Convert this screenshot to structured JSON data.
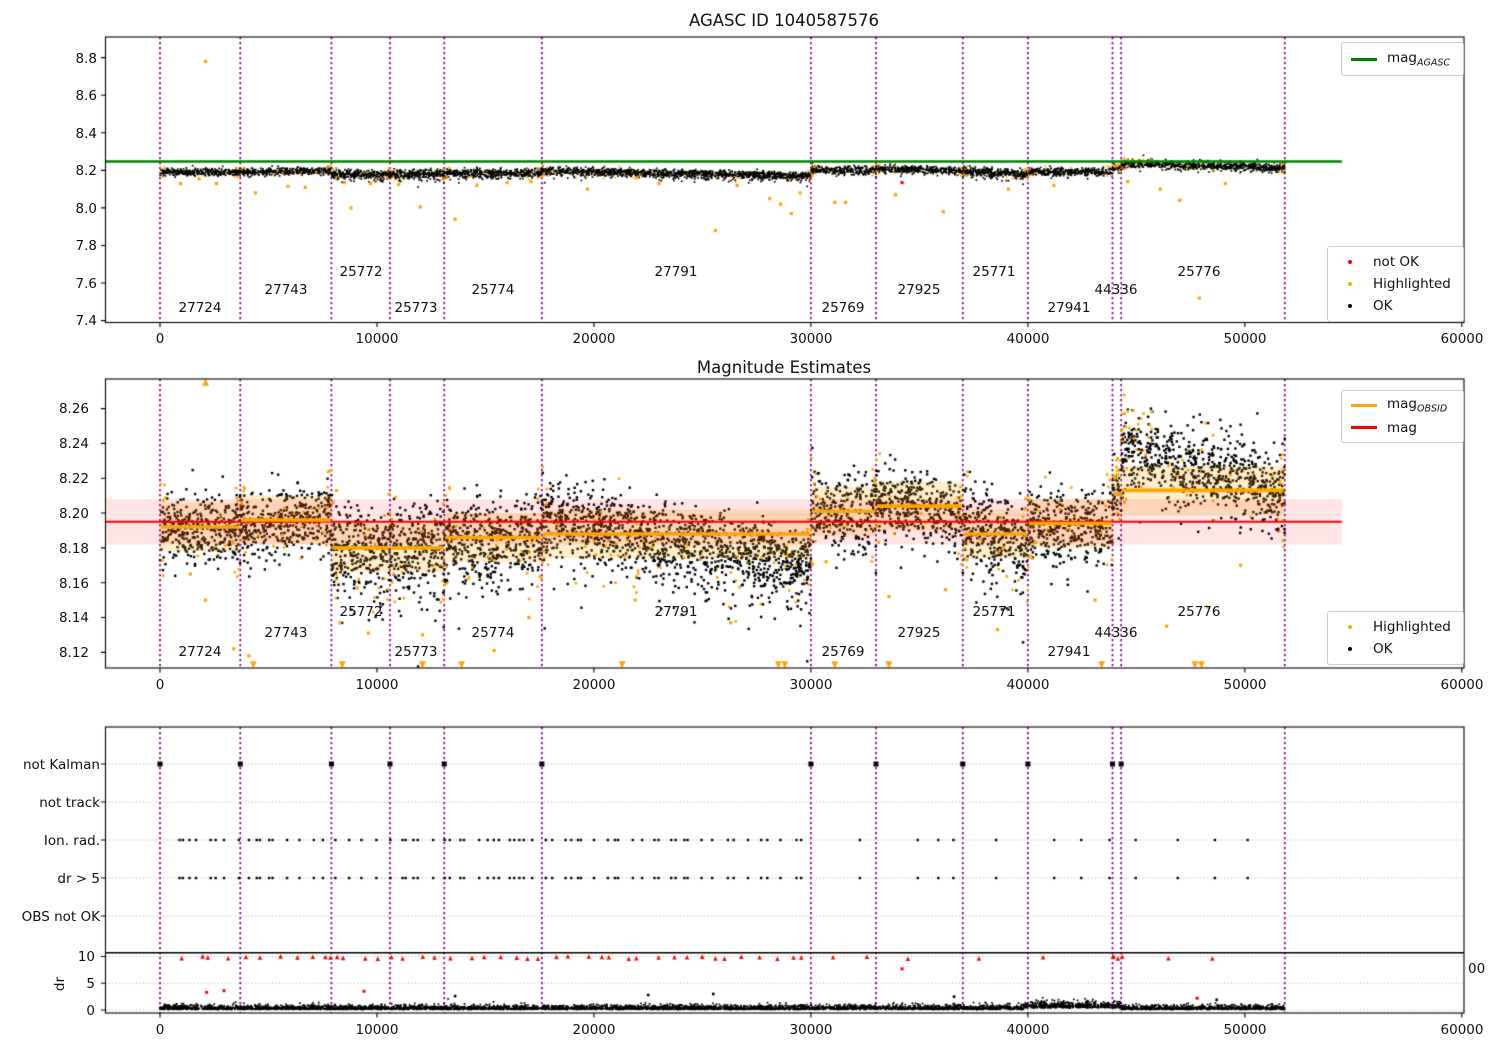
{
  "title_top": "AGASC ID 1040587576",
  "title_middle": "Magnitude Estimates",
  "xtick_labels": [
    "0",
    "10000",
    "20000",
    "30000",
    "40000",
    "50000",
    "60000"
  ],
  "ytick_labels_top": [
    "8.8",
    "8.6",
    "8.4",
    "8.2",
    "8.0",
    "7.8",
    "7.6",
    "7.4"
  ],
  "ytick_labels_middle": [
    "8.26",
    "8.24",
    "8.22",
    "8.20",
    "8.18",
    "8.16",
    "8.14",
    "8.12"
  ],
  "flag_labels": [
    "not Kalman",
    "not track",
    "Ion. rad.",
    "dr > 5",
    "OBS not OK"
  ],
  "dr_tick_labels": [
    "10",
    "5",
    "0"
  ],
  "dr_axis_label": "dr",
  "right_edge_clipped_text": "00",
  "obsid_labels": [
    "27724",
    "27743",
    "25772",
    "25773",
    "25774",
    "27791",
    "25769",
    "27925",
    "25771",
    "27941",
    "44336",
    "25776"
  ],
  "legend_top_plot": {
    "line_base": "mag",
    "line_sub": "AGASC",
    "items": [
      "not OK",
      "Highlighted",
      "OK"
    ]
  },
  "legend_middle_plot": {
    "line1_base": "mag",
    "line1_sub": "OBSID",
    "line2_label": "mag",
    "items": [
      "Highlighted",
      "OK"
    ]
  },
  "colors": {
    "ok": "#000000",
    "highlighted": "#FFA500",
    "not_ok": "#FF0000",
    "mag_agasc_line": "#008000",
    "mag_line": "#FF0000",
    "obsid_line": "#FFA500",
    "obsid_boundary_line": "#8B008B",
    "grid": "#b5b5b5",
    "mag_band_fill": "rgba(255,0,0,0.10)",
    "obsid_band_fill": "rgba(255,165,0,0.20)"
  },
  "chart_data": [
    {
      "type": "scatter",
      "title": "AGASC ID 1040587576",
      "xlim": [
        -2500,
        60100
      ],
      "ylim": [
        7.39,
        8.91
      ],
      "xticks": [
        0,
        10000,
        20000,
        30000,
        40000,
        50000,
        60000
      ],
      "yticks": [
        8.8,
        8.6,
        8.4,
        8.2,
        8.0,
        7.8,
        7.6,
        7.4
      ],
      "mag_agasc": 8.247,
      "line_span_x": [
        -2500,
        54470
      ],
      "legend_line": "mag_AGASC",
      "legend_markers": [
        "not OK",
        "Highlighted",
        "OK"
      ],
      "highlighted_outliers": [
        [
          950,
          8.13
        ],
        [
          1800,
          8.155
        ],
        [
          2100,
          8.78
        ],
        [
          2600,
          8.13
        ],
        [
          4400,
          8.08
        ],
        [
          5900,
          8.115
        ],
        [
          6700,
          8.11
        ],
        [
          8500,
          8.135
        ],
        [
          8800,
          8.0
        ],
        [
          9700,
          8.13
        ],
        [
          11000,
          8.125
        ],
        [
          12000,
          8.005
        ],
        [
          13600,
          7.94
        ],
        [
          14600,
          8.12
        ],
        [
          16000,
          8.135
        ],
        [
          17100,
          8.14
        ],
        [
          19700,
          8.1
        ],
        [
          23000,
          8.13
        ],
        [
          25600,
          7.88
        ],
        [
          26600,
          8.12
        ],
        [
          28100,
          8.05
        ],
        [
          28600,
          8.02
        ],
        [
          29100,
          7.97
        ],
        [
          29500,
          8.08
        ],
        [
          31100,
          8.03
        ],
        [
          31600,
          8.03
        ],
        [
          33900,
          8.07
        ],
        [
          36100,
          7.98
        ],
        [
          39100,
          8.1
        ],
        [
          41200,
          8.12
        ],
        [
          44600,
          8.14
        ],
        [
          46100,
          8.1
        ],
        [
          47000,
          8.04
        ],
        [
          47900,
          7.52
        ],
        [
          49100,
          8.13
        ]
      ],
      "not_ok_points": [
        [
          34200,
          8.135
        ]
      ]
    },
    {
      "type": "scatter",
      "title": "Magnitude Estimates",
      "xlim": [
        -2500,
        60100
      ],
      "ylim": [
        8.111,
        8.277
      ],
      "xticks": [
        0,
        10000,
        20000,
        30000,
        40000,
        50000,
        60000
      ],
      "yticks": [
        8.26,
        8.24,
        8.22,
        8.2,
        8.18,
        8.16,
        8.14,
        8.12
      ],
      "mag": 8.195,
      "mag_band": [
        8.182,
        8.208
      ],
      "obsid_band_halfwidth": 0.014,
      "line_span_x": [
        -2500,
        54470
      ],
      "legend_lines": [
        "mag_OBSID",
        "mag"
      ],
      "legend_markers": [
        "Highlighted",
        "OK"
      ],
      "boundaries": [
        0,
        3700,
        7900,
        10600,
        13100,
        17600,
        30000,
        33000,
        37000,
        40000,
        43900,
        44300,
        51840
      ],
      "segments": [
        {
          "obsid": "27724",
          "x0": 0,
          "x1": 3700,
          "mag_obsid": 8.192,
          "mag_start": 8.19,
          "mag_end": 8.19,
          "spread": 0.01,
          "tail": false,
          "top_orange": false
        },
        {
          "obsid": "27743",
          "x0": 3700,
          "x1": 7900,
          "mag_obsid": 8.196,
          "mag_start": 8.193,
          "mag_end": 8.197,
          "spread": 0.01,
          "tail": false,
          "top_orange": false
        },
        {
          "obsid": "25772",
          "x0": 7900,
          "x1": 10600,
          "mag_obsid": 8.18,
          "mag_start": 8.181,
          "mag_end": 8.179,
          "spread": 0.012,
          "tail": true,
          "top_orange": false
        },
        {
          "obsid": "25773",
          "x0": 10600,
          "x1": 13100,
          "mag_obsid": 8.18,
          "mag_start": 8.181,
          "mag_end": 8.18,
          "spread": 0.012,
          "tail": true,
          "top_orange": false
        },
        {
          "obsid": "25774",
          "x0": 13100,
          "x1": 17600,
          "mag_obsid": 8.186,
          "mag_start": 8.186,
          "mag_end": 8.186,
          "spread": 0.011,
          "tail": true,
          "top_orange": false
        },
        {
          "obsid": "27791",
          "x0": 17600,
          "x1": 30000,
          "mag_obsid": 8.188,
          "mag_start": 8.199,
          "mag_end": 8.171,
          "spread": 0.01,
          "tail": true,
          "top_orange": false
        },
        {
          "obsid": "25769",
          "x0": 30000,
          "x1": 33000,
          "mag_obsid": 8.201,
          "mag_start": 8.201,
          "mag_end": 8.2,
          "spread": 0.011,
          "tail": false,
          "top_orange": false
        },
        {
          "obsid": "27925",
          "x0": 33000,
          "x1": 37000,
          "mag_obsid": 8.204,
          "mag_start": 8.208,
          "mag_end": 8.196,
          "spread": 0.01,
          "tail": false,
          "top_orange": false
        },
        {
          "obsid": "25771",
          "x0": 37000,
          "x1": 40000,
          "mag_obsid": 8.188,
          "mag_start": 8.197,
          "mag_end": 8.179,
          "spread": 0.011,
          "tail": true,
          "top_orange": false
        },
        {
          "obsid": "27941",
          "x0": 40000,
          "x1": 43900,
          "mag_obsid": 8.194,
          "mag_start": 8.191,
          "mag_end": 8.192,
          "spread": 0.011,
          "tail": false,
          "top_orange": false
        },
        {
          "obsid": "44336",
          "x0": 43900,
          "x1": 44300,
          "mag_obsid": 8.211,
          "mag_start": 8.21,
          "mag_end": 8.21,
          "spread": 0.008,
          "tail": false,
          "top_orange": false
        },
        {
          "obsid": "25776",
          "x0": 44300,
          "x1": 51840,
          "mag_obsid": 8.213,
          "mag_start": 8.236,
          "mag_end": 8.213,
          "spread": 0.012,
          "tail": false,
          "top_orange": true
        }
      ],
      "highlighted_singles": [
        [
          1400,
          8.165
        ],
        [
          2100,
          8.15
        ],
        [
          3400,
          8.122
        ],
        [
          4100,
          8.118
        ],
        [
          8300,
          8.137
        ],
        [
          9100,
          8.157
        ],
        [
          9600,
          8.131
        ],
        [
          12100,
          8.13
        ],
        [
          15400,
          8.121
        ],
        [
          17000,
          8.14
        ],
        [
          21900,
          8.15
        ],
        [
          26300,
          8.137
        ],
        [
          30700,
          8.172
        ],
        [
          33600,
          8.152
        ],
        [
          36200,
          8.156
        ],
        [
          38600,
          8.133
        ],
        [
          43100,
          8.15
        ],
        [
          46400,
          8.135
        ],
        [
          48300,
          8.146
        ],
        [
          49800,
          8.17
        ]
      ],
      "clipped_low_x": [
        4300,
        8400,
        12100,
        13900,
        21300,
        28500,
        28800,
        31100,
        33600,
        43400,
        47700,
        48000
      ],
      "clipped_high_x": [
        2100
      ]
    },
    {
      "type": "scatter",
      "rows": [
        "not Kalman",
        "not track",
        "Ion. rad.",
        "dr > 5",
        "OBS not OK"
      ],
      "dr_ticks": [
        10,
        5,
        0
      ],
      "dr_solid_line": 10.7,
      "dr_red_row_value": 9.7,
      "not_kalman_x": [
        0,
        3700,
        7900,
        10600,
        13100,
        17600,
        30000,
        33000,
        37000,
        40000,
        43900,
        44300
      ],
      "not_track_x": [],
      "obs_not_ok_x": [],
      "flag_dense_range": [
        200,
        29800
      ],
      "flag_sparse_range": [
        30100,
        50500
      ],
      "dr_band_range": [
        0,
        51840
      ],
      "dr_band_bump_range": [
        39800,
        44300
      ],
      "dr_red_extra_x": [
        43950,
        44150,
        44350
      ],
      "dr_red_outliers": [
        [
          2150,
          3.3
        ],
        [
          2950,
          3.6
        ],
        [
          9400,
          3.5
        ],
        [
          34200,
          7.7
        ],
        [
          47800,
          2.2
        ]
      ],
      "dr_black_outliers": [
        [
          13600,
          2.6
        ],
        [
          22500,
          2.8
        ],
        [
          25500,
          3.0
        ],
        [
          36600,
          2.5
        ],
        [
          48700,
          1.9
        ]
      ]
    }
  ]
}
